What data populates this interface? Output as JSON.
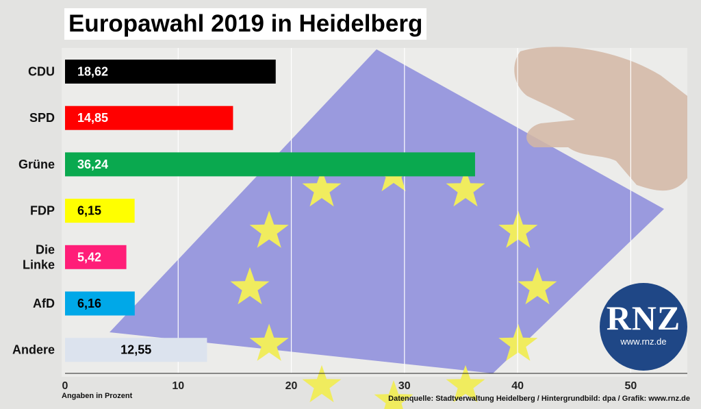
{
  "title": "Europawahl 2019 in Heidelberg",
  "footnote_left": "Angaben in Prozent",
  "footnote_right": "Datenquelle: Stadtverwaltung Heidelberg / Hintergrundbild: dpa / Grafik: www.rnz.de",
  "logo": {
    "brand": "RNZ",
    "url": "www.rnz.de",
    "color": "#1f4786"
  },
  "chart_data": {
    "type": "bar",
    "orientation": "horizontal",
    "categories": [
      "CDU",
      "SPD",
      "Grüne",
      "FDP",
      "Die Linke",
      "AfD",
      "Andere"
    ],
    "values": [
      18.62,
      14.85,
      36.24,
      6.15,
      5.42,
      6.16,
      12.55
    ],
    "value_labels": [
      "18,62",
      "14,85",
      "36,24",
      "6,15",
      "5,42",
      "6,16",
      "12,55"
    ],
    "colors": [
      "#000000",
      "#ff0000",
      "#0aa94f",
      "#ffff00",
      "#ff1e78",
      "#00a8e8",
      "#dce3ee"
    ],
    "label_colors": [
      "#ffffff",
      "#ffffff",
      "#ffffff",
      "#000000",
      "#ffffff",
      "#000000",
      "#000000"
    ],
    "xlim": [
      0,
      55
    ],
    "xticks": [
      0,
      10,
      20,
      30,
      40,
      50
    ],
    "grid": true,
    "xlabel": "",
    "ylabel": ""
  }
}
